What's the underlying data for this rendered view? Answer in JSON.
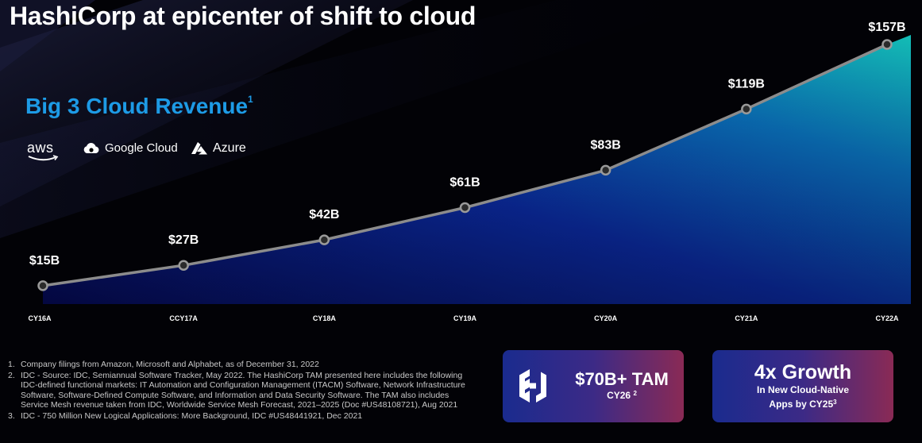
{
  "header": {
    "title": "HashiCorp at epicenter of shift to cloud",
    "subtitle": "Big 3 Cloud Revenue",
    "subtitle_note": "1"
  },
  "logos": {
    "aws": "aws",
    "google": "Google Cloud",
    "azure": "Azure"
  },
  "chart_data": {
    "type": "area",
    "title": "Big 3 Cloud Revenue",
    "categories": [
      "CY16A",
      "CCY17A",
      "CY18A",
      "CY19A",
      "CY20A",
      "CY21A",
      "CY22A"
    ],
    "values": [
      15,
      27,
      42,
      61,
      83,
      119,
      157
    ],
    "data_labels": [
      "$15B",
      "$27B",
      "$42B",
      "$61B",
      "$83B",
      "$119B",
      "$157B"
    ],
    "xlabel": "",
    "ylabel": "",
    "unit": "$B",
    "grid": false,
    "legend": "none",
    "colors": {
      "area_bottom": "#0a1a8a",
      "area_top": "#12b8b8",
      "line": "#8c8c8c"
    }
  },
  "footnotes": [
    {
      "num": "1.",
      "text": "Company filings from Amazon, Microsoft and Alphabet, as of December 31, 2022"
    },
    {
      "num": "2.",
      "text": "IDC - Source: IDC, Semiannual Software Tracker, May 2022. The HashiCorp TAM presented here includes the following IDC-defined functional markets: IT Automation and Configuration Management (ITACM) Software, Network Infrastructure Software, Software-Defined Compute Software, and Information and Data Security Software. The TAM also includes Service Mesh revenue taken from IDC, Worldwide Service Mesh Forecast, 2021–2025 (Doc #US48108721), Aug 2021"
    },
    {
      "num": "3.",
      "text": "IDC - 750 Million New Logical Applications: More Background, IDC #US48441921, Dec 2021"
    }
  ],
  "cards": {
    "tam": {
      "value": "$70B+ TAM",
      "sub": "CY26",
      "note": "2"
    },
    "growth": {
      "value": "4x Growth",
      "line1": "In New Cloud-Native",
      "line2": "Apps by CY25",
      "note": "3"
    }
  }
}
